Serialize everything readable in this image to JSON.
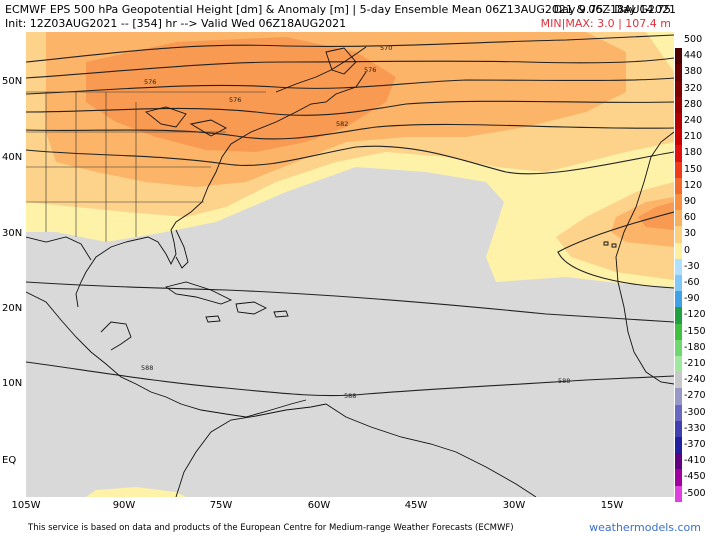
{
  "header": {
    "title": "ECMWF EPS 500 hPa Geopotential Height [dm] & Anomaly [m] | 5-day Ensemble Mean 06Z13AUG2021 & 06Z18AUG2021",
    "init": "Init: 12Z03AUG2021 -- [354] hr --> Valid Wed 06Z18AUG2021",
    "days": "Day 9.75 - Day 14.75",
    "minmax": "MIN|MAX: 3.0 | 107.4 m"
  },
  "axes": {
    "lat_labels": [
      "50N",
      "40N",
      "30N",
      "20N",
      "10N",
      "EQ"
    ],
    "lon_labels": [
      "105W",
      "90W",
      "75W",
      "60W",
      "45W",
      "30W",
      "15W"
    ]
  },
  "contours": {
    "labels": [
      "570",
      "576",
      "576",
      "576",
      "582",
      "588",
      "588",
      "588"
    ]
  },
  "legend": {
    "items": [
      {
        "label": "500",
        "color": "#ffffff"
      },
      {
        "label": "440",
        "color": "#4d0000"
      },
      {
        "label": "380",
        "color": "#660000"
      },
      {
        "label": "320",
        "color": "#800000"
      },
      {
        "label": "280",
        "color": "#990000"
      },
      {
        "label": "240",
        "color": "#b30000"
      },
      {
        "label": "210",
        "color": "#cc0000"
      },
      {
        "label": "180",
        "color": "#e01010"
      },
      {
        "label": "150",
        "color": "#f03a1a"
      },
      {
        "label": "120",
        "color": "#f56a2a"
      },
      {
        "label": "90",
        "color": "#f89040"
      },
      {
        "label": "60",
        "color": "#fbb060"
      },
      {
        "label": "30",
        "color": "#fdd080"
      },
      {
        "label": "0",
        "color": "#fff0a0"
      },
      {
        "label": "-30",
        "color": "#b0e0ff"
      },
      {
        "label": "-60",
        "color": "#80c8f8"
      },
      {
        "label": "-90",
        "color": "#40a0e8"
      },
      {
        "label": "-120",
        "color": "#20a040"
      },
      {
        "label": "-150",
        "color": "#40c040"
      },
      {
        "label": "-180",
        "color": "#70d870"
      },
      {
        "label": "-210",
        "color": "#a0e8a0"
      },
      {
        "label": "-240",
        "color": "#c8c8c8"
      },
      {
        "label": "-270",
        "color": "#9898c8"
      },
      {
        "label": "-300",
        "color": "#6868c0"
      },
      {
        "label": "-330",
        "color": "#4040b0"
      },
      {
        "label": "-370",
        "color": "#2020a0"
      },
      {
        "label": "-410",
        "color": "#600080"
      },
      {
        "label": "-450",
        "color": "#a000a0"
      },
      {
        "label": "-500",
        "color": "#e040e0"
      }
    ]
  },
  "footer": {
    "text": "This service is based on data and products of the European Centre for Medium-range Weather Forecasts (ECMWF)",
    "brand": "weathermodels.com"
  }
}
